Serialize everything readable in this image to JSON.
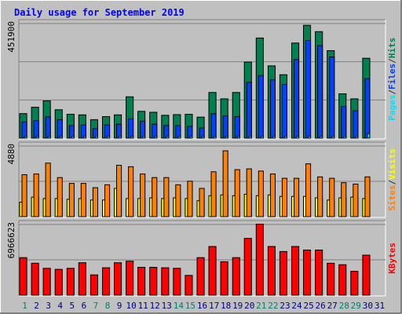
{
  "chart_data": {
    "type": "bar",
    "title": "Daily usage for September 2019",
    "categories": [
      "1",
      "2",
      "3",
      "4",
      "5",
      "6",
      "7",
      "8",
      "9",
      "10",
      "11",
      "12",
      "13",
      "14",
      "15",
      "16",
      "17",
      "18",
      "19",
      "20",
      "21",
      "22",
      "23",
      "24",
      "25",
      "26",
      "27",
      "28",
      "29",
      "30",
      "31"
    ],
    "weekend_days": [
      "1",
      "7",
      "8",
      "14",
      "15",
      "21",
      "22",
      "28",
      "29"
    ],
    "panels": [
      {
        "name": "hits-files-pages",
        "ymax_label": "451900",
        "ylim": [
          0,
          451900
        ],
        "side_label": [
          "Pages",
          "/",
          "Files",
          "/",
          "Hits"
        ],
        "side_label_colors": [
          "#00e0ff",
          "#333333",
          "#0040ff",
          "#333333",
          "#008050"
        ],
        "series": [
          {
            "name": "Hits",
            "color": "#008050",
            "values": [
              97000,
              122000,
              147000,
              112000,
              94000,
              92000,
              73000,
              85000,
              92000,
              163000,
              106000,
              102000,
              90000,
              93000,
              94000,
              83000,
              180000,
              155000,
              180000,
              300000,
              395000,
              285000,
              250000,
              375000,
              445000,
              420000,
              345000,
              175000,
              155000,
              315000,
              0
            ]
          },
          {
            "name": "Files",
            "color": "#0040ff",
            "values": [
              64000,
              69000,
              84000,
              73000,
              50000,
              52000,
              38000,
              52000,
              55000,
              76000,
              67000,
              55000,
              50000,
              50000,
              46000,
              40000,
              97000,
              88000,
              85000,
              220000,
              247000,
              230000,
              212000,
              310000,
              385000,
              365000,
              320000,
              125000,
              108000,
              235000,
              0
            ]
          },
          {
            "name": "Pages",
            "color": "#00e0ff",
            "values": [
              7000,
              7000,
              7000,
              7000,
              7000,
              7000,
              7000,
              7000,
              7000,
              7000,
              7000,
              7000,
              7000,
              7000,
              7000,
              7000,
              7000,
              7000,
              7000,
              7000,
              7000,
              7000,
              7000,
              7000,
              7000,
              7000,
              7000,
              7000,
              7000,
              18000,
              0
            ]
          }
        ]
      },
      {
        "name": "visits-sites",
        "ymax_label": "4880",
        "ylim": [
          0,
          4880
        ],
        "side_label": [
          "Sites",
          "/",
          "Visits"
        ],
        "side_label_colors": [
          "#ff8000",
          "#333333",
          "#ffff00"
        ],
        "series": [
          {
            "name": "Visits",
            "color": "#ffff00",
            "values": [
              1000,
              1350,
              1250,
              1250,
              1200,
              1250,
              1150,
              1150,
              1950,
              1250,
              1250,
              1300,
              1250,
              1300,
              1250,
              1100,
              1450,
              1500,
              1450,
              1550,
              1450,
              1500,
              1400,
              1400,
              1400,
              1300,
              1150,
              1300,
              1350,
              1250,
              0
            ]
          },
          {
            "name": "Sites",
            "color": "#ff8000",
            "values": [
              2900,
              2950,
              3700,
              2700,
              2300,
              2300,
              2000,
              2200,
              3550,
              3450,
              2950,
              2700,
              2700,
              2200,
              2450,
              1950,
              3100,
              4550,
              3250,
              3300,
              3150,
              2950,
              2650,
              2650,
              3650,
              2750,
              2650,
              2350,
              2250,
              2750,
              0
            ]
          }
        ]
      },
      {
        "name": "kbytes",
        "ymax_label": "6966623",
        "ylim": [
          0,
          6966623
        ],
        "side_label": [
          "KBytes"
        ],
        "side_label_colors": [
          "#ff0000"
        ],
        "series": [
          {
            "name": "KBytes",
            "color": "#ff0000",
            "values": [
              3700000,
              3150000,
              2650000,
              2550000,
              2650000,
              3200000,
              2000000,
              2700000,
              3200000,
              3350000,
              2750000,
              2750000,
              2700000,
              2650000,
              1950000,
              3700000,
              4800000,
              3300000,
              3700000,
              5600000,
              7000000,
              4800000,
              4300000,
              4800000,
              4450000,
              4450000,
              3150000,
              3000000,
              2350000,
              3950000,
              0
            ]
          }
        ]
      }
    ],
    "legend": "right-side vertical",
    "grid": true
  },
  "colors": {
    "background": "#c0c0c0",
    "title": "#0000ff",
    "day_label": "#000080",
    "weekend_label": "#00806b"
  }
}
